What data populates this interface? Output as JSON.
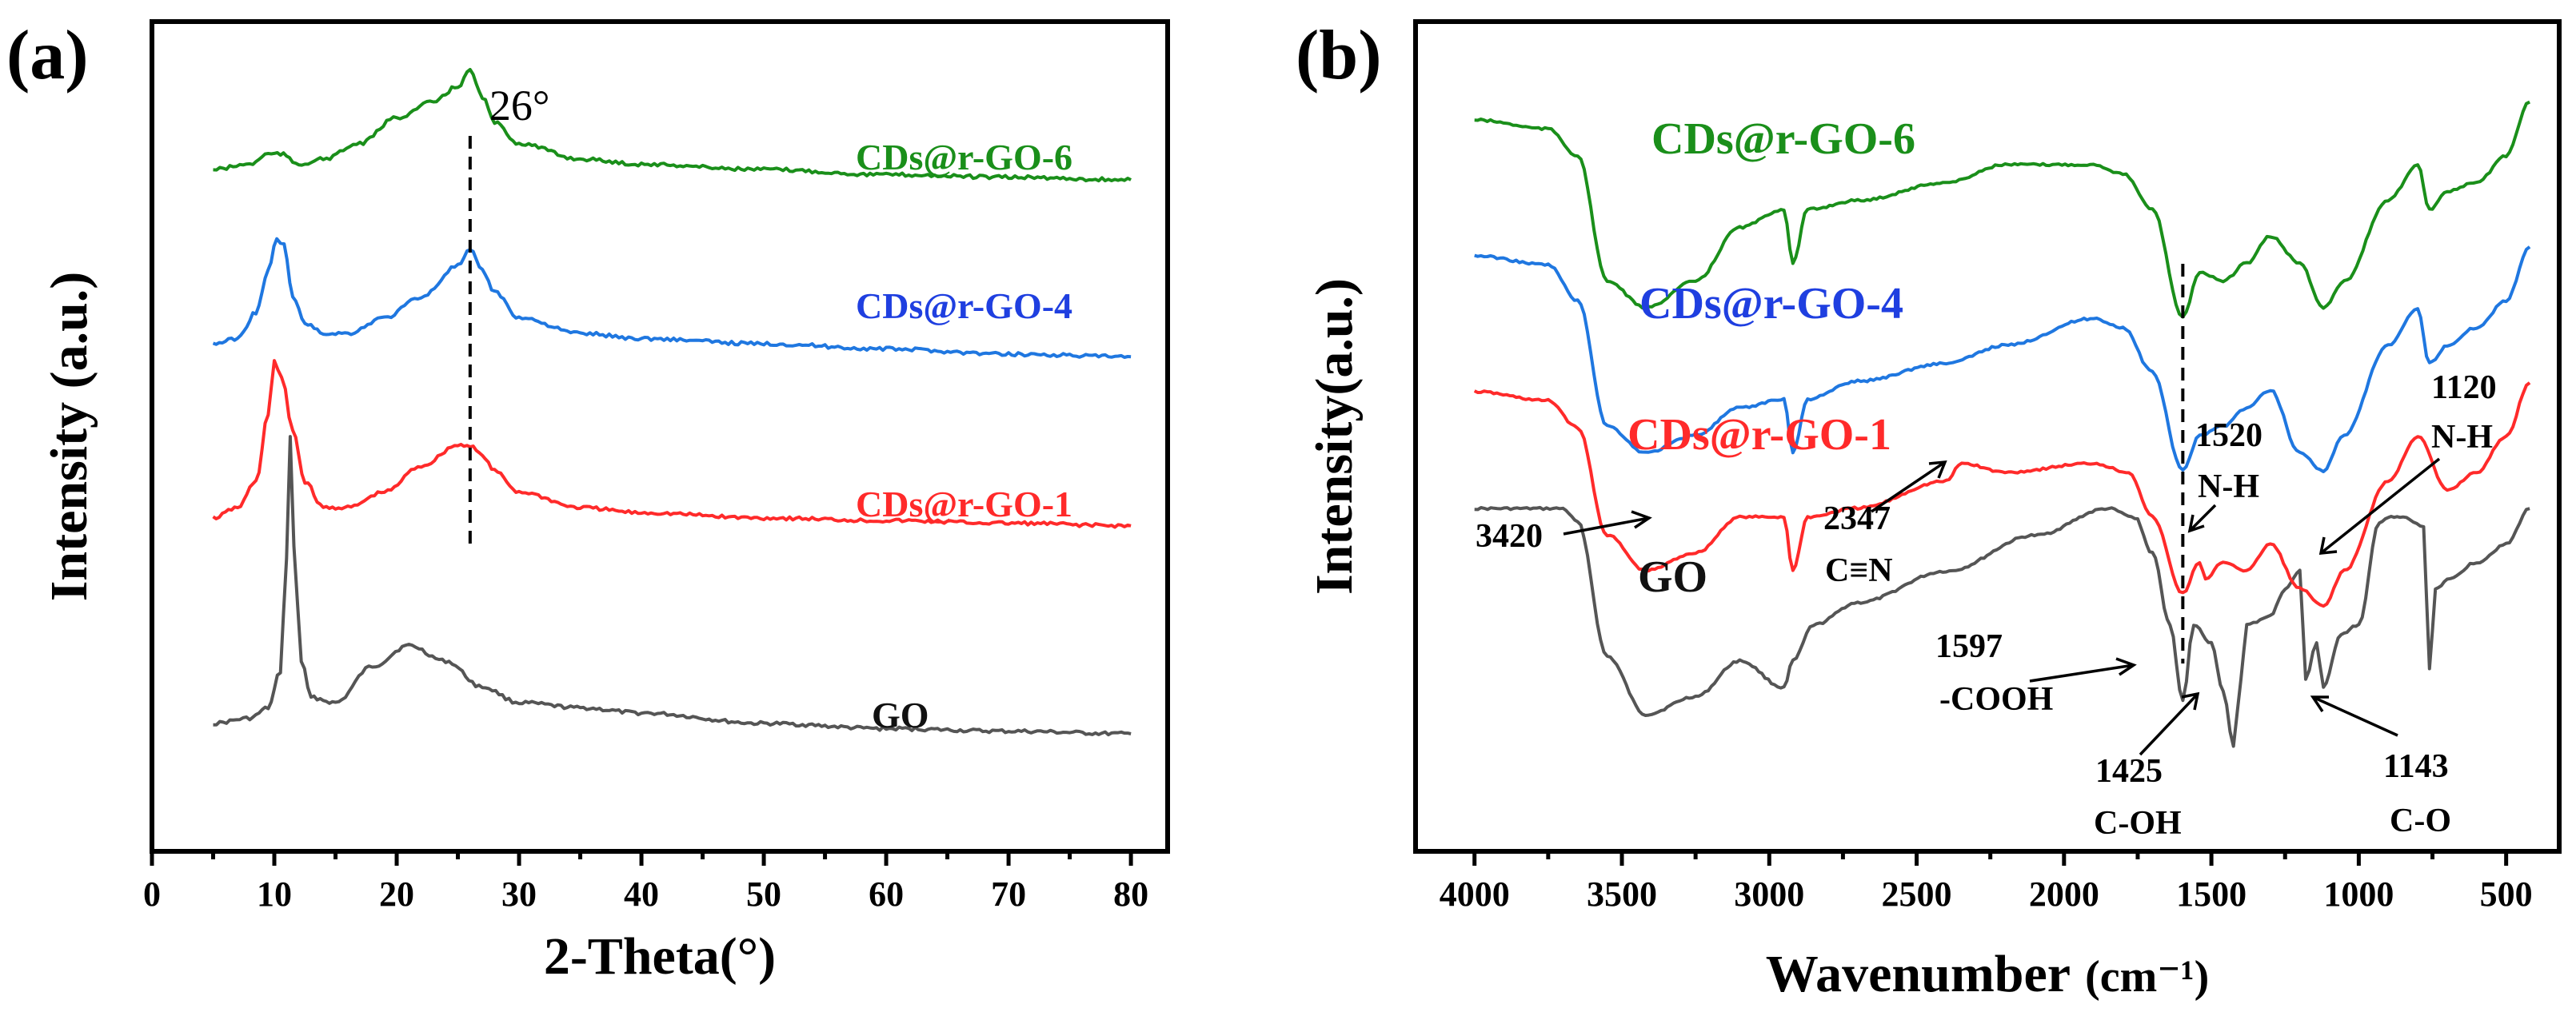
{
  "chart_data": [
    {
      "panel": "(a)",
      "type": "line",
      "xlabel": "2-Theta(°)",
      "ylabel": "Intensity (a.u.)",
      "xlim": [
        0,
        83
      ],
      "xticks": [
        0,
        10,
        20,
        30,
        40,
        50,
        60,
        70,
        80
      ],
      "annotations": [
        {
          "label": "26°",
          "x": 26
        }
      ],
      "series": [
        {
          "name": "GO",
          "color": "#555555",
          "x": [
            5,
            8,
            9.5,
            10.5,
            11,
            11.3,
            11.6,
            12.2,
            13,
            15,
            18,
            21,
            24,
            27,
            30,
            35,
            40,
            50,
            60,
            70,
            80
          ],
          "y": [
            0.0,
            0.01,
            0.03,
            0.1,
            0.32,
            0.55,
            0.34,
            0.12,
            0.05,
            0.04,
            0.11,
            0.15,
            0.12,
            0.07,
            0.04,
            0.03,
            0.02,
            0.0,
            -0.01,
            -0.015,
            -0.02
          ]
        },
        {
          "name": "CDs@r-GO-1",
          "color": "#ff2a2a",
          "x": [
            5,
            7,
            8.5,
            9.5,
            10,
            10.6,
            11.5,
            12.5,
            14,
            16,
            19,
            22,
            25,
            26,
            27,
            28,
            30,
            35,
            40,
            50,
            60,
            70,
            80
          ],
          "y": [
            0.0,
            0.02,
            0.07,
            0.2,
            0.3,
            0.27,
            0.17,
            0.07,
            0.02,
            0.02,
            0.05,
            0.1,
            0.14,
            0.14,
            0.12,
            0.09,
            0.05,
            0.02,
            0.01,
            0.0,
            -0.005,
            -0.01,
            -0.015
          ]
        },
        {
          "name": "CDs@r-GO-4",
          "color": "#1f77e0",
          "x": [
            5,
            7,
            8.5,
            9.5,
            10.2,
            10.8,
            11.5,
            12.5,
            14,
            16,
            19,
            22,
            25,
            26,
            27,
            28,
            30,
            35,
            40,
            50,
            60,
            70,
            80
          ],
          "y": [
            0.0,
            0.01,
            0.06,
            0.14,
            0.2,
            0.19,
            0.09,
            0.04,
            0.02,
            0.02,
            0.05,
            0.09,
            0.15,
            0.18,
            0.14,
            0.1,
            0.05,
            0.02,
            0.01,
            0.0,
            -0.01,
            -0.02,
            -0.025
          ]
        },
        {
          "name": "CDs@r-GO-6",
          "color": "#1a8f1a",
          "x": [
            5,
            8,
            9.5,
            10.5,
            12,
            14,
            17,
            20,
            23,
            25,
            26,
            27,
            28,
            30,
            35,
            40,
            50,
            60,
            70,
            80
          ],
          "y": [
            0.0,
            0.01,
            0.03,
            0.03,
            0.01,
            0.02,
            0.05,
            0.1,
            0.13,
            0.16,
            0.19,
            0.14,
            0.09,
            0.05,
            0.02,
            0.01,
            0.0,
            -0.01,
            -0.015,
            -0.02
          ]
        }
      ]
    },
    {
      "panel": "(b)",
      "type": "line",
      "xlabel": "Wavenumber",
      "xunit": "(cm⁻¹)",
      "ylabel": "Intensity(a.u.)",
      "xlim": [
        4200,
        320
      ],
      "xticks": [
        4000,
        3500,
        3000,
        2500,
        2000,
        1500,
        1000,
        500
      ],
      "annotations": [
        {
          "label": "3420",
          "x": 3420
        },
        {
          "label": "2347",
          "sub": "C≡N",
          "x": 2347
        },
        {
          "label": "1597",
          "sub": "-COOH",
          "x": 1597
        },
        {
          "label": "1520",
          "sub": "N-H",
          "x": 1520
        },
        {
          "label": "1425",
          "sub": "C-OH",
          "x": 1425
        },
        {
          "label": "1143",
          "sub": "C-O",
          "x": 1143
        },
        {
          "label": "1120",
          "sub": "N-H",
          "x": 1120
        }
      ],
      "series": [
        {
          "name": "GO",
          "color": "#555555",
          "x": [
            4000,
            3800,
            3700,
            3650,
            3550,
            3420,
            3250,
            3100,
            2950,
            2920,
            2850,
            2700,
            2400,
            2100,
            1850,
            1760,
            1700,
            1640,
            1597,
            1560,
            1500,
            1460,
            1425,
            1400,
            1380,
            1300,
            1250,
            1200,
            1180,
            1143,
            1120,
            1060,
            1000,
            930,
            900,
            850,
            780,
            760,
            740,
            700,
            600,
            500,
            420
          ],
          "y": [
            0.48,
            0.48,
            0.48,
            0.45,
            0.15,
            0.02,
            0.06,
            0.14,
            0.08,
            0.14,
            0.22,
            0.27,
            0.34,
            0.42,
            0.48,
            0.46,
            0.38,
            0.22,
            0.05,
            0.22,
            0.18,
            0.07,
            -0.05,
            0.1,
            0.22,
            0.24,
            0.3,
            0.34,
            0.1,
            0.18,
            0.08,
            0.2,
            0.22,
            0.45,
            0.46,
            0.46,
            0.44,
            0.12,
            0.3,
            0.32,
            0.36,
            0.4,
            0.48
          ]
        },
        {
          "name": "CDs@r-GO-1",
          "color": "#ff2a2a",
          "x": [
            4000,
            3750,
            3650,
            3550,
            3420,
            3250,
            3100,
            2950,
            2920,
            2870,
            2700,
            2400,
            2347,
            2200,
            1900,
            1780,
            1700,
            1597,
            1540,
            1520,
            1460,
            1380,
            1300,
            1200,
            1120,
            1050,
            900,
            800,
            700,
            600,
            500,
            420
          ],
          "y": [
            0.5,
            0.48,
            0.42,
            0.18,
            0.1,
            0.14,
            0.22,
            0.22,
            0.1,
            0.22,
            0.24,
            0.3,
            0.34,
            0.32,
            0.34,
            0.32,
            0.22,
            0.05,
            0.12,
            0.08,
            0.12,
            0.1,
            0.16,
            0.06,
            0.02,
            0.1,
            0.3,
            0.4,
            0.28,
            0.32,
            0.4,
            0.52
          ]
        },
        {
          "name": "CDs@r-GO-4",
          "color": "#1f77e0",
          "x": [
            4000,
            3750,
            3650,
            3550,
            3420,
            3250,
            3100,
            2950,
            2920,
            2870,
            2700,
            2400,
            2200,
            1900,
            1800,
            1700,
            1597,
            1540,
            1460,
            1380,
            1300,
            1200,
            1120,
            1050,
            900,
            800,
            760,
            700,
            600,
            500,
            420
          ],
          "y": [
            0.5,
            0.48,
            0.4,
            0.12,
            0.06,
            0.1,
            0.16,
            0.18,
            0.06,
            0.18,
            0.22,
            0.26,
            0.3,
            0.36,
            0.34,
            0.24,
            0.02,
            0.1,
            0.12,
            0.16,
            0.2,
            0.06,
            0.02,
            0.1,
            0.3,
            0.38,
            0.26,
            0.3,
            0.34,
            0.4,
            0.52
          ]
        },
        {
          "name": "CDs@r-GO-6",
          "color": "#1a8f1a",
          "x": [
            4000,
            3750,
            3650,
            3550,
            3420,
            3250,
            3100,
            2950,
            2920,
            2870,
            2700,
            2400,
            2200,
            1900,
            1800,
            1700,
            1597,
            1540,
            1460,
            1380,
            1300,
            1200,
            1120,
            1050,
            900,
            800,
            760,
            700,
            600,
            500,
            420
          ],
          "y": [
            0.5,
            0.48,
            0.42,
            0.14,
            0.08,
            0.14,
            0.26,
            0.3,
            0.18,
            0.3,
            0.32,
            0.36,
            0.4,
            0.4,
            0.38,
            0.3,
            0.06,
            0.16,
            0.14,
            0.18,
            0.24,
            0.18,
            0.08,
            0.14,
            0.32,
            0.4,
            0.3,
            0.34,
            0.36,
            0.42,
            0.54
          ]
        }
      ]
    }
  ]
}
